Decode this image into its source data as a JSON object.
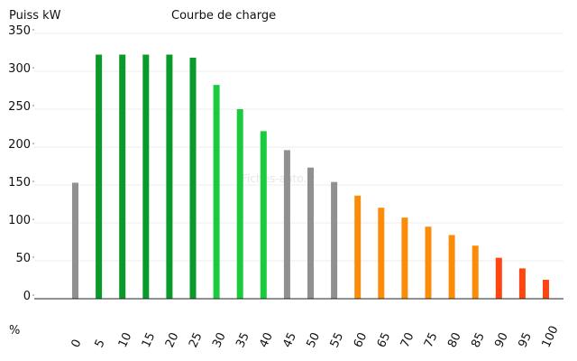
{
  "chart_data": {
    "type": "bar",
    "title": "Courbe de charge",
    "ylabel": "Puiss kW",
    "xlabel": "%",
    "watermark": "Fiches-auto.fr",
    "ylim": [
      0,
      350
    ],
    "yticks": [
      "0",
      "50",
      "100",
      "150",
      "200",
      "250",
      "300",
      "350"
    ],
    "grid": true,
    "categories": [
      "0",
      "5",
      "10",
      "15",
      "20",
      "25",
      "30",
      "35",
      "40",
      "45",
      "50",
      "55",
      "60",
      "65",
      "70",
      "75",
      "80",
      "85",
      "90",
      "95",
      "100"
    ],
    "values": [
      153,
      322,
      322,
      322,
      322,
      318,
      282,
      250,
      221,
      196,
      173,
      154,
      136,
      120,
      107,
      95,
      84,
      70,
      54,
      40,
      25
    ],
    "colors": [
      "#909090",
      "#0a9a2a",
      "#0a9a2a",
      "#0a9a2a",
      "#0a9a2a",
      "#0a9a2a",
      "#19cc3c",
      "#19cc3c",
      "#19cc3c",
      "#909090",
      "#909090",
      "#909090",
      "#fb8c0a",
      "#fb8c0a",
      "#fb8c0a",
      "#fb8c0a",
      "#fb8c0a",
      "#fb8c0a",
      "#ff4510",
      "#ff4510",
      "#ff4510"
    ]
  }
}
